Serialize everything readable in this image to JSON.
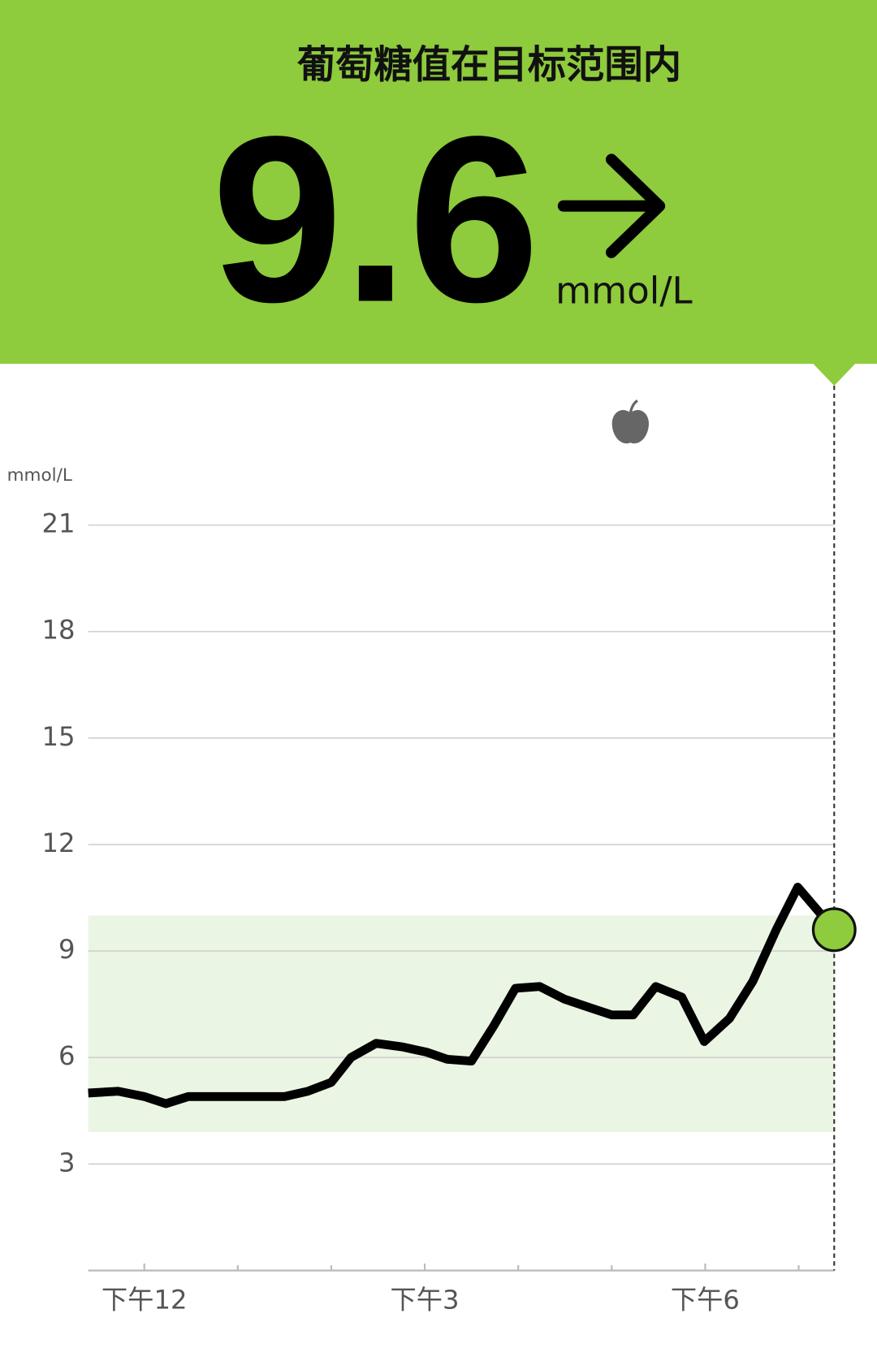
{
  "chart_data": {
    "type": "line",
    "status": "葡萄糖值在目标范围内",
    "current_value": 9.6,
    "unit": "mmol/L",
    "ylabel": "mmol/L",
    "ylim": [
      0,
      21
    ],
    "yticks": [
      3,
      6,
      9,
      12,
      15,
      18,
      21
    ],
    "xlim": [
      11.4,
      19.38
    ],
    "xticks": [
      {
        "value": 12,
        "label": "下午12"
      },
      {
        "value": 15,
        "label": "下午3"
      },
      {
        "value": 18,
        "label": "下午6"
      }
    ],
    "xminorticks": [
      13,
      14,
      16,
      17,
      19
    ],
    "target_range": [
      3.9,
      10
    ],
    "meal_markers": [
      17.2
    ],
    "grid": true,
    "series": [
      {
        "color": "#000000",
        "x": [
          11.4,
          11.72,
          12.0,
          12.23,
          12.47,
          12.75,
          12.98,
          13.26,
          13.5,
          13.75,
          14.0,
          14.21,
          14.48,
          14.76,
          15.02,
          15.24,
          15.5,
          15.74,
          15.97,
          16.23,
          16.49,
          16.77,
          17.0,
          17.23,
          17.47,
          17.75,
          17.99,
          18.26,
          18.51,
          18.76,
          18.99,
          19.38
        ],
        "values": [
          5.0,
          5.05,
          4.9,
          4.7,
          4.9,
          4.9,
          4.9,
          4.9,
          4.9,
          5.05,
          5.3,
          6.0,
          6.4,
          6.3,
          6.15,
          5.95,
          5.9,
          6.9,
          7.95,
          8.0,
          7.65,
          7.4,
          7.2,
          7.2,
          8.0,
          7.7,
          6.45,
          7.1,
          8.15,
          9.6,
          10.8,
          9.6
        ]
      }
    ]
  }
}
